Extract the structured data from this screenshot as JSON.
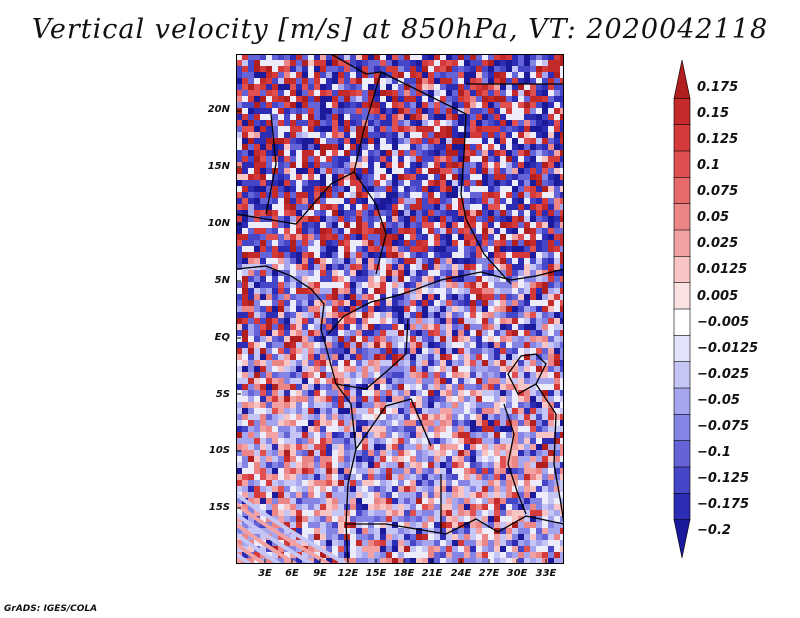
{
  "title": "Vertical velocity [m/s] at 850hPa, VT: 2020042118",
  "credit": "GrADS: IGES/COLA",
  "y_axis": {
    "labels": [
      "20N",
      "15N",
      "10N",
      "5N",
      "EQ",
      "5S",
      "10S",
      "15S"
    ]
  },
  "x_axis": {
    "labels": [
      "3E",
      "6E",
      "9E",
      "12E",
      "15E",
      "18E",
      "21E",
      "24E",
      "27E",
      "30E",
      "33E"
    ]
  },
  "colorbar": {
    "levels": [
      "0.175",
      "0.15",
      "0.125",
      "0.1",
      "0.075",
      "0.05",
      "0.025",
      "0.0125",
      "0.005",
      "−0.005",
      "−0.0125",
      "−0.025",
      "−0.05",
      "−0.075",
      "−0.1",
      "−0.125",
      "−0.175",
      "−0.2"
    ],
    "colors": [
      "#b01e1e",
      "#c42a2a",
      "#d43a3a",
      "#e05050",
      "#e66a6a",
      "#ec8686",
      "#f2a2a2",
      "#f8c4c4",
      "#fbe2e2",
      "#ffffff",
      "#e2e2fb",
      "#c6c6f6",
      "#a6a6ee",
      "#8484e4",
      "#6464d8",
      "#4646c8",
      "#2c2cb4",
      "#1a1a9a"
    ]
  },
  "map": {
    "variable": "Vertical velocity",
    "units": "m/s",
    "level": "850hPa",
    "valid_time": "2020042118"
  }
}
